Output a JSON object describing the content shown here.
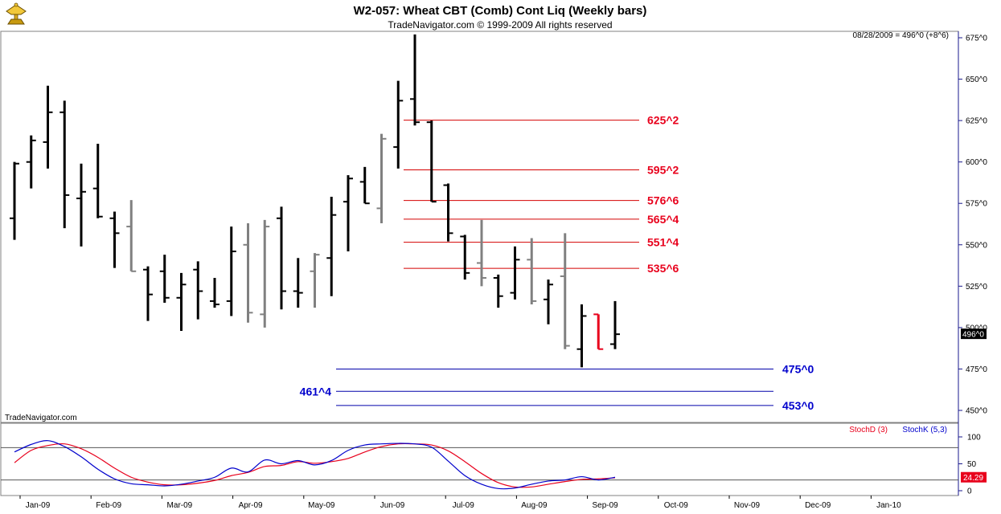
{
  "header": {
    "title": "W2-057:  Wheat CBT (Comb) Cont Liq  (Weekly bars)",
    "subtitle": "TradeNavigator.com © 1999-2009 All rights reserved",
    "quote": "08/28/2009 = 496^0 (+8^6)",
    "watermark": "TradeNavigator.com",
    "logo_icon": "gold-trophy-icon"
  },
  "price_axis": {
    "ticks": [
      {
        "v": 675,
        "label": "675^0"
      },
      {
        "v": 650,
        "label": "650^0"
      },
      {
        "v": 625,
        "label": "625^0"
      },
      {
        "v": 600,
        "label": "600^0"
      },
      {
        "v": 575,
        "label": "575^0"
      },
      {
        "v": 550,
        "label": "550^0"
      },
      {
        "v": 525,
        "label": "525^0"
      },
      {
        "v": 500,
        "label": "500^0"
      },
      {
        "v": 475,
        "label": "475^0"
      },
      {
        "v": 450,
        "label": "450^0"
      }
    ],
    "last_price_label": "496^0",
    "last_price": 496
  },
  "stoch_axis": {
    "ticks": [
      {
        "v": 100,
        "label": "100"
      },
      {
        "v": 50,
        "label": "50"
      },
      {
        "v": 0,
        "label": "0"
      }
    ],
    "last_value_label": "24.29",
    "last_value": 24.29,
    "reference_lines": [
      80,
      20
    ],
    "legend_d": "StochD (3)",
    "legend_k": "StochK (5,3)",
    "color_d": "#e8001c",
    "color_k": "#0000cc"
  },
  "months": [
    "Jan-09",
    "Feb-09",
    "Mar-09",
    "Apr-09",
    "May-09",
    "Jun-09",
    "Jul-09",
    "Aug-09",
    "Sep-09",
    "Oct-09",
    "Nov-09",
    "Dec-09",
    "Jan-10"
  ],
  "chart_data": {
    "type": "bar",
    "ohlc_weeks": [
      {
        "h": 600,
        "l": 553,
        "o": 566,
        "c": 599,
        "color": "black"
      },
      {
        "h": 616,
        "l": 584,
        "o": 600,
        "c": 613,
        "color": "black"
      },
      {
        "h": 646,
        "l": 596,
        "o": 612,
        "c": 630,
        "color": "black"
      },
      {
        "h": 637,
        "l": 560,
        "o": 630,
        "c": 580,
        "color": "black"
      },
      {
        "h": 599,
        "l": 549,
        "o": 578,
        "c": 582,
        "color": "black"
      },
      {
        "h": 611,
        "l": 566,
        "o": 584,
        "c": 567,
        "color": "black"
      },
      {
        "h": 570,
        "l": 536,
        "o": 566,
        "c": 557,
        "color": "black"
      },
      {
        "h": 577,
        "l": 534,
        "o": 561,
        "c": 534,
        "color": "gray"
      },
      {
        "h": 537,
        "l": 504,
        "o": 535,
        "c": 520,
        "color": "black"
      },
      {
        "h": 544,
        "l": 515,
        "o": 534,
        "c": 518,
        "color": "black"
      },
      {
        "h": 533,
        "l": 498,
        "o": 518,
        "c": 526,
        "color": "black"
      },
      {
        "h": 540,
        "l": 505,
        "o": 535,
        "c": 522,
        "color": "black"
      },
      {
        "h": 530,
        "l": 512,
        "o": 516,
        "c": 514,
        "color": "black"
      },
      {
        "h": 561,
        "l": 507,
        "o": 516,
        "c": 546,
        "color": "black"
      },
      {
        "h": 563,
        "l": 503,
        "o": 550,
        "c": 509,
        "color": "gray"
      },
      {
        "h": 565,
        "l": 500,
        "o": 508,
        "c": 561,
        "color": "gray"
      },
      {
        "h": 573,
        "l": 511,
        "o": 566,
        "c": 522,
        "color": "black"
      },
      {
        "h": 542,
        "l": 512,
        "o": 522,
        "c": 521,
        "color": "black"
      },
      {
        "h": 545,
        "l": 512,
        "o": 534,
        "c": 544,
        "color": "gray"
      },
      {
        "h": 579,
        "l": 519,
        "o": 542,
        "c": 568,
        "color": "black"
      },
      {
        "h": 592,
        "l": 546,
        "o": 576,
        "c": 590,
        "color": "black"
      },
      {
        "h": 597,
        "l": 575,
        "o": 588,
        "c": 575,
        "color": "black"
      },
      {
        "h": 617,
        "l": 563,
        "o": 572,
        "c": 614,
        "color": "gray"
      },
      {
        "h": 649,
        "l": 596,
        "o": 609,
        "c": 637,
        "color": "black"
      },
      {
        "h": 677,
        "l": 622,
        "o": 638,
        "c": 624,
        "color": "black"
      },
      {
        "h": 625,
        "l": 576,
        "o": 624,
        "c": 576,
        "color": "black"
      },
      {
        "h": 587,
        "l": 552,
        "o": 586,
        "c": 557,
        "color": "black"
      },
      {
        "h": 556,
        "l": 529,
        "o": 555,
        "c": 533,
        "color": "black"
      },
      {
        "h": 565,
        "l": 525,
        "o": 539,
        "c": 530,
        "color": "gray"
      },
      {
        "h": 532,
        "l": 512,
        "o": 530,
        "c": 519,
        "color": "black"
      },
      {
        "h": 549,
        "l": 517,
        "o": 521,
        "c": 541,
        "color": "black"
      },
      {
        "h": 554,
        "l": 514,
        "o": 541,
        "c": 516,
        "color": "gray"
      },
      {
        "h": 529,
        "l": 502,
        "o": 517,
        "c": 526,
        "color": "black"
      },
      {
        "h": 557,
        "l": 487,
        "o": 531,
        "c": 489,
        "color": "gray"
      },
      {
        "h": 514,
        "l": 476,
        "o": 487,
        "c": 507,
        "color": "black"
      },
      {
        "h": 508,
        "l": 487,
        "o": 508,
        "c": 487,
        "color": "red"
      },
      {
        "h": 516,
        "l": 487,
        "o": 490,
        "c": 496,
        "color": "black"
      }
    ],
    "levels": [
      {
        "value": 625.25,
        "label": "625^2",
        "color": "red"
      },
      {
        "value": 595.25,
        "label": "595^2",
        "color": "red"
      },
      {
        "value": 576.75,
        "label": "576^6",
        "color": "red"
      },
      {
        "value": 565.5,
        "label": "565^4",
        "color": "red"
      },
      {
        "value": 551.5,
        "label": "551^4",
        "color": "red"
      },
      {
        "value": 535.75,
        "label": "535^6",
        "color": "red"
      },
      {
        "value": 475.0,
        "label": "475^0",
        "color": "blue"
      },
      {
        "value": 461.5,
        "label": "461^4",
        "color": "blue"
      },
      {
        "value": 453.0,
        "label": "453^0",
        "color": "blue"
      }
    ],
    "stoch_k": [
      72,
      86,
      93,
      82,
      63,
      40,
      22,
      13,
      11,
      9,
      12,
      18,
      25,
      42,
      35,
      57,
      50,
      56,
      48,
      56,
      75,
      85,
      87,
      88,
      87,
      81,
      55,
      28,
      12,
      4,
      5,
      12,
      18,
      20,
      26,
      20,
      25
    ],
    "stoch_d": [
      52,
      75,
      84,
      87,
      78,
      62,
      42,
      25,
      16,
      11,
      11,
      14,
      19,
      28,
      34,
      45,
      47,
      54,
      51,
      54,
      60,
      72,
      82,
      87,
      87,
      85,
      74,
      54,
      32,
      15,
      7,
      7,
      12,
      17,
      21,
      22,
      24
    ],
    "ylim": [
      445,
      685
    ],
    "stoch_ylim": [
      -10,
      120
    ]
  }
}
